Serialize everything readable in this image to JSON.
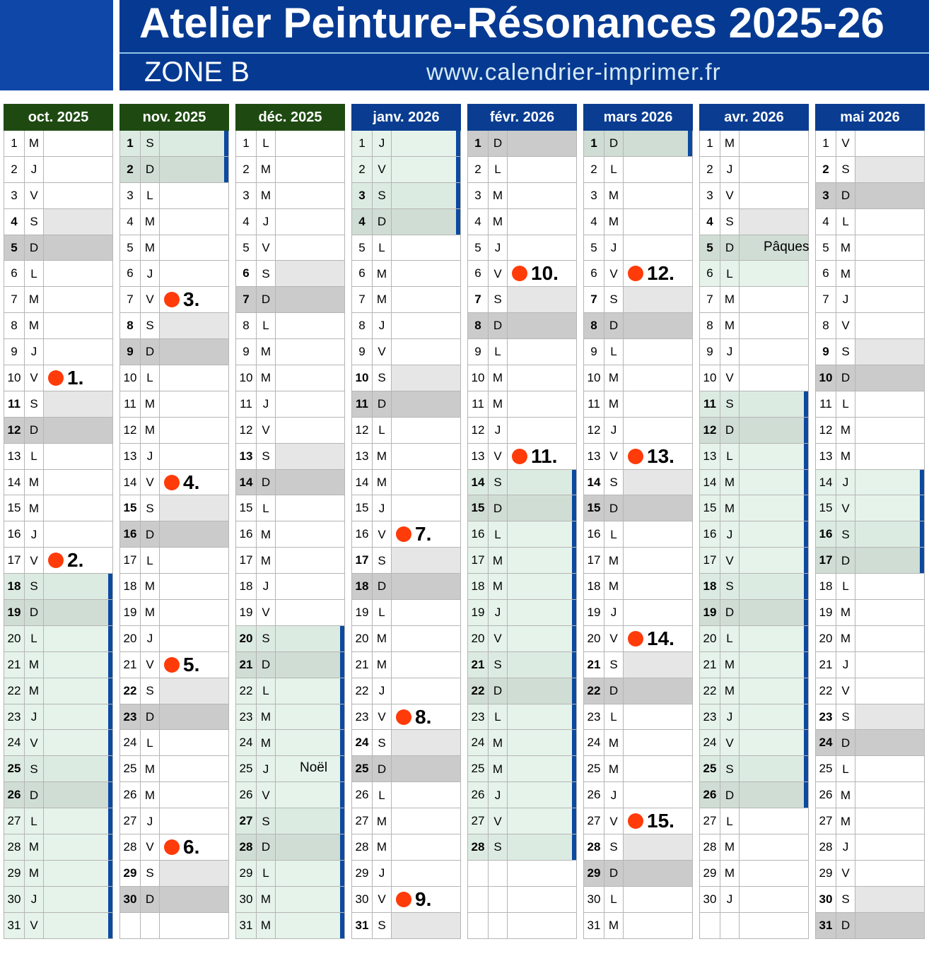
{
  "header": {
    "title": "Atelier Peinture-Résonances 2025-26",
    "zone": "ZONE B",
    "url": "www.calendrier-imprimer.fr"
  },
  "colors": {
    "autumn_header": "#1e4a12",
    "winter_header": "#0a3d91",
    "event_dot": "#ff3b0a",
    "holiday": "#e5f3ea",
    "holiday_bar": "#0b4aa0"
  },
  "months": [
    {
      "name": "oct. 2025",
      "color": "#1e4a12",
      "days": "MJVSDLMMJVSDLMMJVSDLMMJVSDLMMJV",
      "holidays": [
        18,
        31
      ],
      "bar": true,
      "events": {
        "10": "1.",
        "17": "2."
      }
    },
    {
      "name": "nov. 2025",
      "color": "#1e4a12",
      "days": "SDLMMJVSDLMMJVSDLMMJVSDLMMJVSD",
      "holidays": [
        1,
        2
      ],
      "bar": true,
      "events": {
        "7": "3.",
        "14": "4.",
        "21": "5.",
        "28": "6."
      }
    },
    {
      "name": "déc. 2025",
      "color": "#1e4a12",
      "days": "LMMJVSDLMMJVSDLMMJVSDLMMJVSDLMM",
      "holidays": [
        20,
        31
      ],
      "bar": true,
      "notes": {
        "25": "Noël"
      }
    },
    {
      "name": "janv. 2026",
      "color": "#0a3d91",
      "days": "JVSDLMMJVSDLMMJVSDLMMJVSDLMMJVS",
      "holidays": [
        1,
        4
      ],
      "bar": true,
      "events": {
        "16": "7.",
        "23": "8.",
        "30": "9."
      }
    },
    {
      "name": "févr. 2026",
      "color": "#0a3d91",
      "days": "DLMMJVSDLMMJVSDLMMJVSDLMMJVS",
      "holidays": [
        14,
        28
      ],
      "bar": true,
      "events": {
        "6": "10.",
        "13": "11."
      }
    },
    {
      "name": "mars 2026",
      "color": "#0a3d91",
      "days": "DLMMJVSDLMMJVSDLMMJVSDLMMJVSDLM",
      "holidays": [
        1,
        1
      ],
      "bar": true,
      "events": {
        "6": "12.",
        "13": "13.",
        "20": "14.",
        "27": "15."
      }
    },
    {
      "name": "avr. 2026",
      "color": "#0a3d91",
      "days": "MJVSDLMMJVSDLMMJVSDLMMJVSDLMMJ",
      "holidays": [
        11,
        26
      ],
      "bar": true,
      "extra_holidays": [
        5,
        6
      ],
      "notes": {
        "5": "Pâques"
      }
    },
    {
      "name": "mai 2026",
      "color": "#0a3d91",
      "days": "VSDLMMJVSDLMMJVSDLMMJVSDLMMJVSD",
      "holidays": [
        14,
        17
      ],
      "bar": true
    }
  ]
}
